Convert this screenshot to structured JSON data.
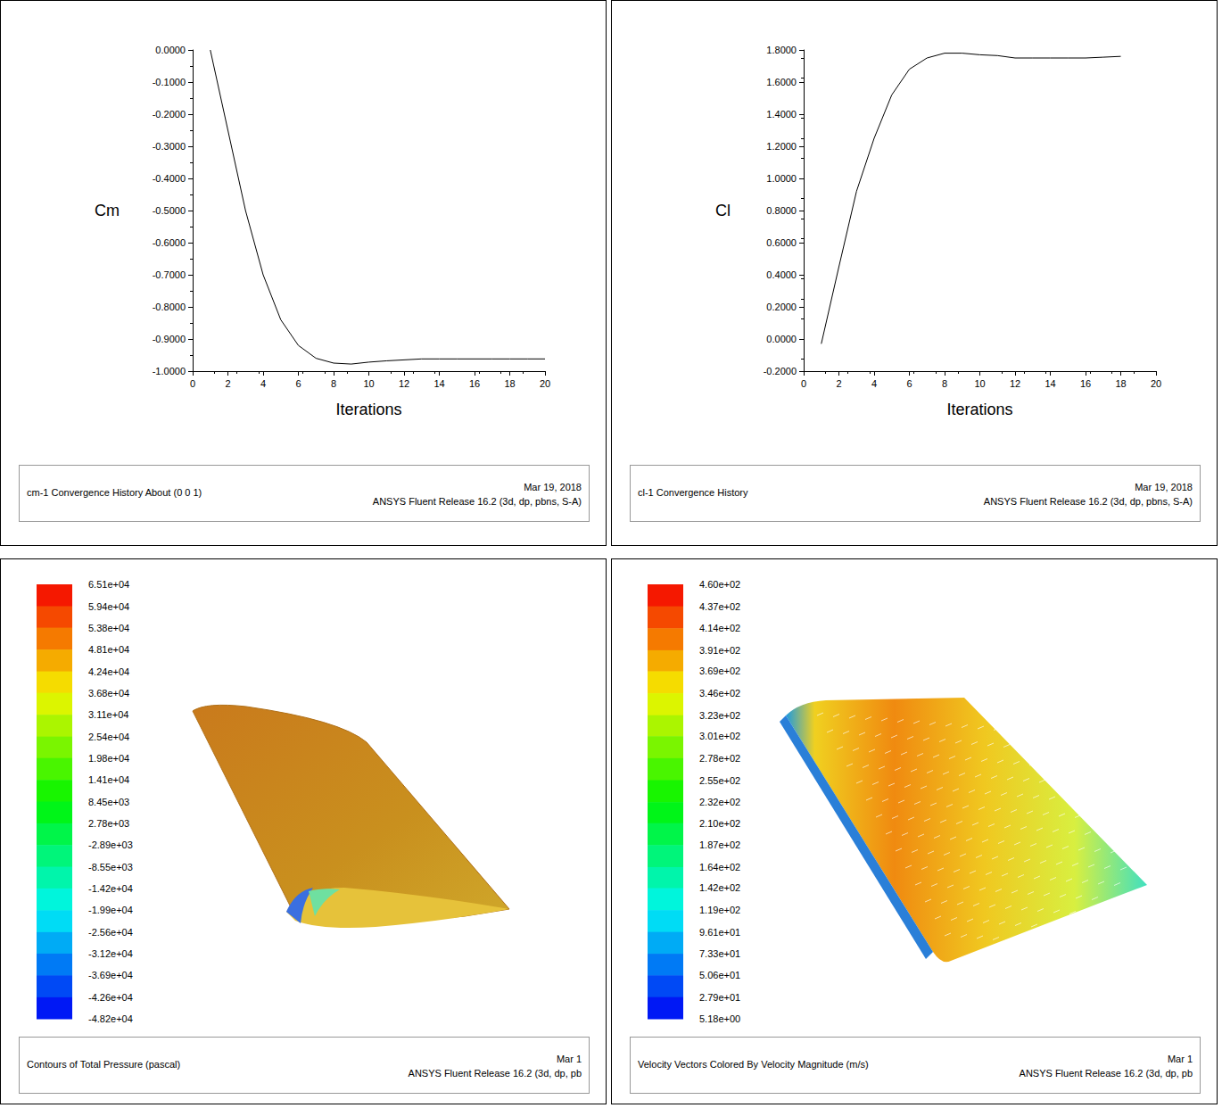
{
  "chart_data": [
    {
      "type": "line",
      "xlabel": "Iterations",
      "ylabel": "Cm",
      "x": [
        1,
        2,
        3,
        4,
        5,
        6,
        7,
        8,
        9,
        10,
        11,
        12,
        13,
        14,
        15,
        16,
        17,
        18,
        19,
        20
      ],
      "values": [
        0.0,
        -0.25,
        -0.5,
        -0.7,
        -0.84,
        -0.92,
        -0.96,
        -0.975,
        -0.978,
        -0.972,
        -0.968,
        -0.965,
        -0.962,
        -0.962,
        -0.962,
        -0.962,
        -0.962,
        -0.962,
        -0.962,
        -0.962
      ],
      "color": "#000000",
      "grid": false,
      "xlim": [
        0,
        20
      ],
      "xticks": [
        0,
        2,
        4,
        6,
        8,
        10,
        12,
        14,
        16,
        18,
        20
      ],
      "ylim": [
        -1,
        0
      ],
      "yticks": [
        {
          "value": 0,
          "label": "0.0000"
        },
        {
          "value": -0.1,
          "label": "-0.1000"
        },
        {
          "value": -0.2,
          "label": "-0.2000"
        },
        {
          "value": -0.3,
          "label": "-0.3000"
        },
        {
          "value": -0.4,
          "label": "-0.4000"
        },
        {
          "value": -0.5,
          "label": "-0.5000"
        },
        {
          "value": -0.6,
          "label": "-0.6000"
        },
        {
          "value": -0.7,
          "label": "-0.7000"
        },
        {
          "value": -0.8,
          "label": "-0.8000"
        },
        {
          "value": -0.9,
          "label": "-0.9000"
        },
        {
          "value": -1,
          "label": "-1.0000"
        }
      ],
      "footer": {
        "title": "cm-1 Convergence History About (0 0 1)",
        "date": "Mar 19, 2018",
        "software": "ANSYS Fluent Release 16.2 (3d, dp, pbns, S-A)"
      }
    },
    {
      "type": "line",
      "xlabel": "Iterations",
      "ylabel": "Cl",
      "x": [
        1,
        2,
        3,
        4,
        5,
        6,
        7,
        8,
        9,
        10,
        11,
        12,
        13,
        14,
        15,
        16,
        17,
        18
      ],
      "values": [
        -0.03,
        0.45,
        0.92,
        1.25,
        1.52,
        1.68,
        1.75,
        1.78,
        1.78,
        1.77,
        1.765,
        1.75,
        1.75,
        1.75,
        1.75,
        1.75,
        1.755,
        1.76
      ],
      "color": "#000000",
      "grid": false,
      "xlim": [
        0,
        20
      ],
      "xticks": [
        0,
        2,
        4,
        6,
        8,
        10,
        12,
        14,
        16,
        18,
        20
      ],
      "ylim": [
        -0.2,
        1.8
      ],
      "yticks": [
        {
          "value": -0.2,
          "label": "-0.2000"
        },
        {
          "value": 0,
          "label": "0.0000"
        },
        {
          "value": 0.2,
          "label": "0.2000"
        },
        {
          "value": 0.4,
          "label": "0.4000"
        },
        {
          "value": 0.6,
          "label": "0.6000"
        },
        {
          "value": 0.8,
          "label": "0.8000"
        },
        {
          "value": 1,
          "label": "1.0000"
        },
        {
          "value": 1.2,
          "label": "1.2000"
        },
        {
          "value": 1.4,
          "label": "1.4000"
        },
        {
          "value": 1.6,
          "label": "1.6000"
        },
        {
          "value": 1.8,
          "label": "1.8000"
        }
      ],
      "footer": {
        "title": "cl-1 Convergence History",
        "date": "Mar 19, 2018",
        "software": "ANSYS Fluent Release 16.2 (3d, dp, pbns, S-A)"
      }
    },
    {
      "type": "contour",
      "colorbar_range": [
        -48200,
        65100
      ],
      "colorbar_ticks": [
        {
          "value": 65100,
          "label": "6.51e+04"
        },
        {
          "value": 59400,
          "label": "5.94e+04"
        },
        {
          "value": 53800,
          "label": "5.38e+04"
        },
        {
          "value": 48100,
          "label": "4.81e+04"
        },
        {
          "value": 42400,
          "label": "4.24e+04"
        },
        {
          "value": 36800,
          "label": "3.68e+04"
        },
        {
          "value": 31100,
          "label": "3.11e+04"
        },
        {
          "value": 25400,
          "label": "2.54e+04"
        },
        {
          "value": 19800,
          "label": "1.98e+04"
        },
        {
          "value": 14100,
          "label": "1.41e+04"
        },
        {
          "value": 8450,
          "label": "8.45e+03"
        },
        {
          "value": 2780,
          "label": "2.78e+03"
        },
        {
          "value": -2890,
          "label": "-2.89e+03"
        },
        {
          "value": -8550,
          "label": "-8.55e+03"
        },
        {
          "value": -14200,
          "label": "-1.42e+04"
        },
        {
          "value": -19900,
          "label": "-1.99e+04"
        },
        {
          "value": -25600,
          "label": "-2.56e+04"
        },
        {
          "value": -31200,
          "label": "-3.12e+04"
        },
        {
          "value": -36900,
          "label": "-3.69e+04"
        },
        {
          "value": -42600,
          "label": "-4.26e+04"
        },
        {
          "value": -48200,
          "label": "-4.82e+04"
        }
      ],
      "footer": {
        "title": "Contours of Total Pressure (pascal)",
        "date": "Mar 1",
        "software": "ANSYS Fluent Release 16.2 (3d, dp, pb"
      }
    },
    {
      "type": "vectors",
      "colorbar_range": [
        5.18,
        460
      ],
      "colorbar_ticks": [
        {
          "value": 460,
          "label": "4.60e+02"
        },
        {
          "value": 437,
          "label": "4.37e+02"
        },
        {
          "value": 414,
          "label": "4.14e+02"
        },
        {
          "value": 391,
          "label": "3.91e+02"
        },
        {
          "value": 369,
          "label": "3.69e+02"
        },
        {
          "value": 346,
          "label": "3.46e+02"
        },
        {
          "value": 323,
          "label": "3.23e+02"
        },
        {
          "value": 301,
          "label": "3.01e+02"
        },
        {
          "value": 278,
          "label": "2.78e+02"
        },
        {
          "value": 255,
          "label": "2.55e+02"
        },
        {
          "value": 232,
          "label": "2.32e+02"
        },
        {
          "value": 210,
          "label": "2.10e+02"
        },
        {
          "value": 187,
          "label": "1.87e+02"
        },
        {
          "value": 164,
          "label": "1.64e+02"
        },
        {
          "value": 142,
          "label": "1.42e+02"
        },
        {
          "value": 119,
          "label": "1.19e+02"
        },
        {
          "value": 96.1,
          "label": "9.61e+01"
        },
        {
          "value": 73.3,
          "label": "7.33e+01"
        },
        {
          "value": 50.6,
          "label": "5.06e+01"
        },
        {
          "value": 27.9,
          "label": "2.79e+01"
        },
        {
          "value": 5.18,
          "label": "5.18e+00"
        }
      ],
      "footer": {
        "title": "Velocity Vectors Colored By Velocity Magnitude (m/s)",
        "date": "Mar 1",
        "software": "ANSYS Fluent Release 16.2 (3d, dp, pb"
      }
    }
  ]
}
